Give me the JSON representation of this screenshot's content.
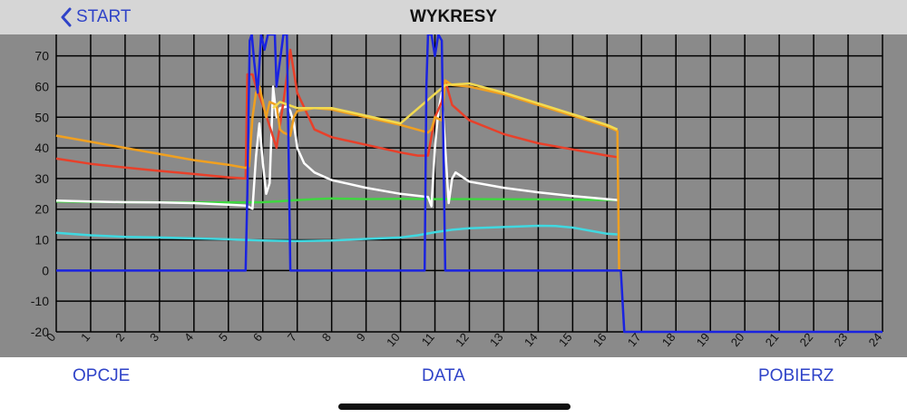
{
  "header": {
    "back_label": "START",
    "title": "WYKRESY"
  },
  "footer": {
    "options_label": "OPCJE",
    "date_label": "DATA",
    "download_label": "POBIERZ"
  },
  "colors": {
    "accent": "#2f43c8",
    "background": "#8a8a8a",
    "grid": "#000000"
  },
  "chart_data": {
    "type": "line",
    "xlim": [
      0,
      24
    ],
    "ylim": [
      -20,
      77
    ],
    "x_ticks": [
      0,
      1,
      2,
      3,
      4,
      5,
      6,
      7,
      8,
      9,
      10,
      11,
      12,
      13,
      14,
      15,
      16,
      17,
      18,
      19,
      20,
      21,
      22,
      23,
      24
    ],
    "y_ticks": [
      -20,
      -10,
      0,
      10,
      20,
      30,
      40,
      50,
      60,
      70
    ],
    "grid": true,
    "series": [
      {
        "color": "#40d8e0",
        "points": [
          [
            0,
            12.3
          ],
          [
            1,
            11.5
          ],
          [
            2,
            11
          ],
          [
            3,
            10.8
          ],
          [
            4,
            10.5
          ],
          [
            5,
            10.2
          ],
          [
            5.5,
            10
          ],
          [
            6,
            9.8
          ],
          [
            7,
            9.6
          ],
          [
            8,
            9.8
          ],
          [
            9,
            10.3
          ],
          [
            10,
            10.8
          ],
          [
            10.5,
            11.5
          ],
          [
            11,
            12.5
          ],
          [
            11.5,
            13.3
          ],
          [
            12,
            13.8
          ],
          [
            13,
            14.2
          ],
          [
            14,
            14.6
          ],
          [
            14.5,
            14.5
          ],
          [
            15,
            14
          ],
          [
            16,
            12
          ],
          [
            16.3,
            11.8
          ]
        ]
      },
      {
        "color": "#3fd641",
        "points": [
          [
            0,
            22.5
          ],
          [
            2,
            22.3
          ],
          [
            4,
            22.2
          ],
          [
            5.5,
            22.2
          ],
          [
            6,
            22.3
          ],
          [
            6.5,
            22.6
          ],
          [
            7,
            23
          ],
          [
            7.5,
            23.3
          ],
          [
            8,
            23.5
          ],
          [
            9,
            23.3
          ],
          [
            10,
            23.4
          ],
          [
            11,
            23.3
          ],
          [
            12,
            23.3
          ],
          [
            14,
            23.2
          ],
          [
            16.3,
            23
          ]
        ]
      },
      {
        "color": "#ffffff",
        "points": [
          [
            0,
            22.8
          ],
          [
            1,
            22.5
          ],
          [
            2,
            22.3
          ],
          [
            3,
            22.2
          ],
          [
            4,
            22
          ],
          [
            5,
            21.5
          ],
          [
            5.5,
            21.2
          ],
          [
            5.7,
            20.2
          ],
          [
            5.8,
            37
          ],
          [
            5.9,
            48
          ],
          [
            6.0,
            35
          ],
          [
            6.1,
            25
          ],
          [
            6.2,
            28.5
          ],
          [
            6.3,
            60
          ],
          [
            6.4,
            50
          ],
          [
            6.5,
            53
          ],
          [
            6.7,
            53.5
          ],
          [
            6.8,
            52
          ],
          [
            6.9,
            48
          ],
          [
            7.0,
            40
          ],
          [
            7.2,
            35
          ],
          [
            7.5,
            32
          ],
          [
            8,
            29.5
          ],
          [
            9,
            27
          ],
          [
            10,
            25
          ],
          [
            10.8,
            24
          ],
          [
            10.9,
            21
          ],
          [
            11.0,
            40
          ],
          [
            11.1,
            52
          ],
          [
            11.2,
            58
          ],
          [
            11.3,
            40
          ],
          [
            11.4,
            22
          ],
          [
            11.5,
            30
          ],
          [
            11.6,
            32
          ],
          [
            12,
            29
          ],
          [
            13,
            27
          ],
          [
            14,
            25.5
          ],
          [
            15,
            24.3
          ],
          [
            16,
            23.3
          ],
          [
            16.3,
            23
          ]
        ]
      },
      {
        "color": "#e8402a",
        "points": [
          [
            0,
            36.5
          ],
          [
            1,
            34.8
          ],
          [
            2,
            33.6
          ],
          [
            3,
            32.5
          ],
          [
            4,
            31.5
          ],
          [
            5,
            30.4
          ],
          [
            5.5,
            30
          ],
          [
            5.55,
            64
          ],
          [
            5.7,
            64
          ],
          [
            5.8,
            60
          ],
          [
            6.0,
            54
          ],
          [
            6.4,
            40
          ],
          [
            6.6,
            55
          ],
          [
            6.8,
            72
          ],
          [
            7.0,
            58
          ],
          [
            7.5,
            46
          ],
          [
            8,
            43.5
          ],
          [
            9,
            41
          ],
          [
            10,
            38.5
          ],
          [
            10.5,
            37.5
          ],
          [
            10.8,
            37.5
          ],
          [
            11.0,
            50
          ],
          [
            11.2,
            55
          ],
          [
            11.3,
            62
          ],
          [
            11.5,
            54
          ],
          [
            11.7,
            52
          ],
          [
            12,
            49
          ],
          [
            13,
            44.5
          ],
          [
            14,
            41.5
          ],
          [
            15,
            39.5
          ],
          [
            16,
            37.5
          ],
          [
            16.3,
            37
          ]
        ]
      },
      {
        "color": "#f0a020",
        "points": [
          [
            0,
            44
          ],
          [
            1,
            42
          ],
          [
            2,
            40
          ],
          [
            3,
            38
          ],
          [
            4,
            36
          ],
          [
            5,
            34.5
          ],
          [
            5.5,
            33.5
          ],
          [
            5.6,
            34
          ],
          [
            5.7,
            50
          ],
          [
            5.8,
            58
          ],
          [
            5.9,
            60
          ],
          [
            6.0,
            55
          ],
          [
            6.1,
            50
          ],
          [
            6.2,
            55
          ],
          [
            6.4,
            54
          ],
          [
            6.5,
            46
          ],
          [
            6.6,
            45
          ],
          [
            6.8,
            44
          ],
          [
            6.9,
            50
          ],
          [
            7.0,
            52
          ],
          [
            7.5,
            53
          ],
          [
            8,
            52.5
          ],
          [
            9,
            50
          ],
          [
            10,
            47.5
          ],
          [
            10.8,
            45
          ],
          [
            10.9,
            46
          ],
          [
            11.0,
            50
          ],
          [
            11.2,
            49
          ],
          [
            11.3,
            62
          ],
          [
            11.5,
            60.5
          ],
          [
            12,
            60
          ],
          [
            13,
            57.5
          ],
          [
            14,
            54
          ],
          [
            15,
            50.5
          ],
          [
            16,
            47
          ],
          [
            16.3,
            45.5
          ],
          [
            16.35,
            0
          ]
        ]
      },
      {
        "color": "#f2da50",
        "points": [
          [
            6.3,
            53
          ],
          [
            6.5,
            55
          ],
          [
            7,
            53
          ],
          [
            8,
            53
          ],
          [
            9,
            50.5
          ],
          [
            10,
            48
          ],
          [
            11.3,
            60.5
          ],
          [
            12,
            61
          ],
          [
            13,
            58
          ],
          [
            14,
            54.5
          ],
          [
            15,
            51
          ],
          [
            16,
            47.5
          ],
          [
            16.3,
            46
          ]
        ]
      },
      {
        "color": "#1a23e0",
        "points": [
          [
            0,
            0
          ],
          [
            5.5,
            0
          ],
          [
            5.55,
            25
          ],
          [
            5.62,
            75
          ],
          [
            5.68,
            77
          ],
          [
            5.75,
            68
          ],
          [
            5.85,
            58
          ],
          [
            5.95,
            77
          ],
          [
            6.05,
            72
          ],
          [
            6.15,
            77
          ],
          [
            6.25,
            77
          ],
          [
            6.3,
            77
          ],
          [
            6.35,
            77
          ],
          [
            6.4,
            60
          ],
          [
            6.6,
            77
          ],
          [
            6.7,
            77
          ],
          [
            6.8,
            0
          ],
          [
            10.7,
            0
          ],
          [
            10.75,
            60
          ],
          [
            10.8,
            77
          ],
          [
            10.9,
            77
          ],
          [
            11.0,
            70
          ],
          [
            11.1,
            77
          ],
          [
            11.2,
            75
          ],
          [
            11.3,
            0
          ],
          [
            16.4,
            0
          ],
          [
            16.5,
            -20
          ],
          [
            24,
            -20
          ]
        ]
      }
    ]
  }
}
